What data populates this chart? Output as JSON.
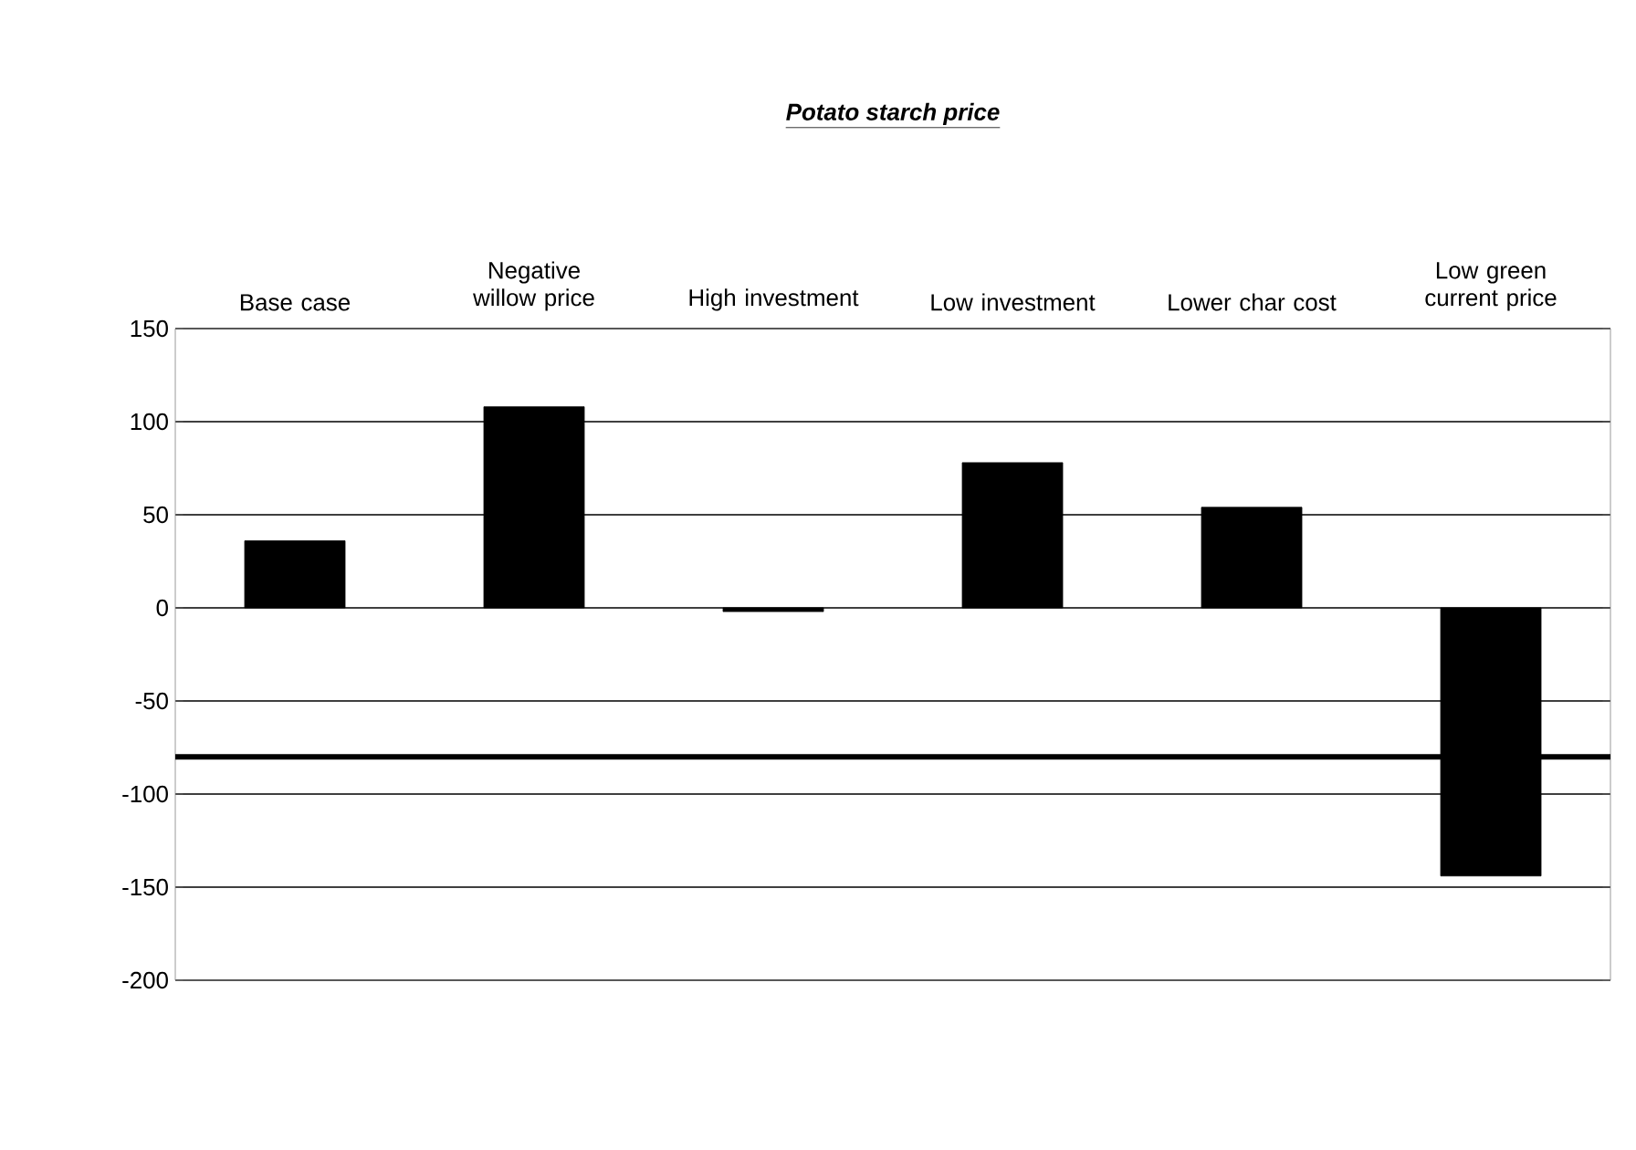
{
  "chart_data": {
    "type": "bar",
    "title": "Potato starch price",
    "categories": [
      "Base case",
      "Negative willow price",
      "High investment",
      "Low investment",
      "Lower char cost",
      "Low green current price"
    ],
    "values": [
      36,
      108,
      -2,
      78,
      54,
      -144
    ],
    "color": "#000000",
    "ylim": [
      -200,
      150
    ],
    "yticks": [
      -200,
      -150,
      -100,
      -50,
      0,
      50,
      100,
      150
    ],
    "grid": "y",
    "ref_lines": [
      {
        "axis": "y",
        "value": -80,
        "color": "#000000"
      }
    ]
  }
}
